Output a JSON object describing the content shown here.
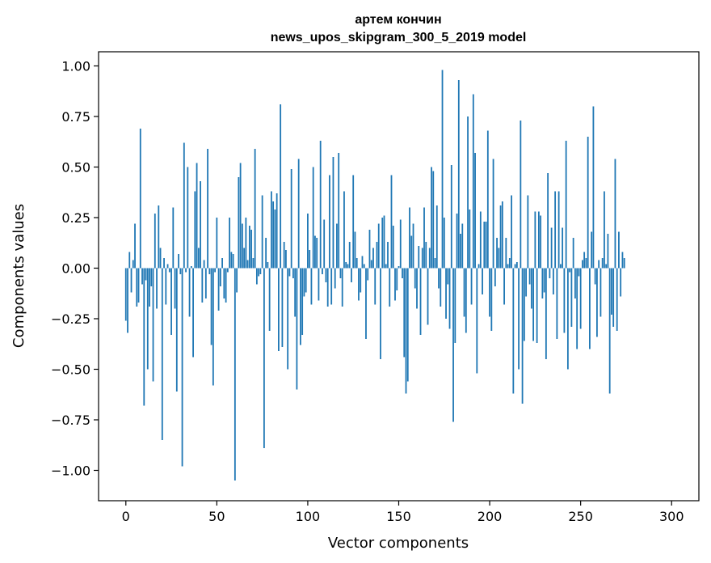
{
  "chart_data": {
    "type": "bar",
    "title": "артем кончин",
    "subtitle": "news_upos_skipgram_300_5_2019 model",
    "xlabel": "Vector components",
    "ylabel": "Components values",
    "xlim": [
      -15,
      315
    ],
    "ylim": [
      -1.15,
      1.07
    ],
    "xticks": [
      0,
      50,
      100,
      150,
      200,
      250,
      300
    ],
    "yticks": [
      -1.0,
      -0.75,
      -0.5,
      -0.25,
      0.0,
      0.25,
      0.5,
      0.75,
      1.0
    ],
    "xtick_labels": [
      "0",
      "50",
      "100",
      "150",
      "200",
      "250",
      "300"
    ],
    "ytick_labels": [
      "−1.00",
      "−0.75",
      "−0.50",
      "−0.25",
      "0.00",
      "0.25",
      "0.50",
      "0.75",
      "1.00"
    ],
    "bar_color": "#1f77b4",
    "grid": false,
    "values": [
      -0.26,
      -0.32,
      0.08,
      -0.12,
      0.04,
      0.22,
      -0.19,
      -0.17,
      0.69,
      -0.08,
      -0.68,
      -0.06,
      -0.5,
      -0.19,
      -0.09,
      -0.56,
      0.27,
      -0.2,
      0.31,
      0.1,
      -0.85,
      0.05,
      -0.18,
      0.02,
      -0.02,
      -0.33,
      0.3,
      -0.2,
      -0.61,
      0.07,
      -0.03,
      -0.98,
      0.62,
      -0.02,
      0.5,
      -0.24,
      0.01,
      -0.44,
      0.38,
      0.52,
      0.1,
      0.43,
      -0.17,
      0.04,
      -0.15,
      0.59,
      -0.03,
      -0.38,
      -0.58,
      -0.02,
      0.25,
      -0.21,
      -0.09,
      0.05,
      -0.15,
      -0.17,
      -0.02,
      0.25,
      0.08,
      0.07,
      -1.05,
      -0.12,
      0.45,
      0.52,
      0.22,
      0.1,
      0.25,
      0.04,
      0.21,
      0.19,
      0.05,
      0.59,
      -0.08,
      -0.04,
      -0.03,
      0.36,
      -0.89,
      0.15,
      0.03,
      -0.31,
      0.38,
      0.33,
      0.29,
      0.37,
      -0.41,
      0.81,
      -0.39,
      0.13,
      0.09,
      -0.5,
      -0.04,
      0.49,
      -0.05,
      -0.24,
      -0.6,
      0.54,
      -0.38,
      -0.33,
      -0.14,
      -0.12,
      0.27,
      0.09,
      -0.18,
      0.5,
      0.16,
      0.15,
      -0.16,
      0.63,
      -0.03,
      0.24,
      -0.07,
      -0.19,
      0.46,
      -0.18,
      0.55,
      -0.1,
      0.22,
      0.57,
      -0.05,
      -0.19,
      0.38,
      0.03,
      0.02,
      0.13,
      -0.07,
      0.46,
      0.18,
      0.05,
      -0.16,
      -0.12,
      0.06,
      0.02,
      -0.35,
      -0.06,
      0.19,
      0.04,
      0.1,
      -0.18,
      0.13,
      0.22,
      -0.45,
      0.25,
      0.26,
      0.02,
      0.13,
      -0.19,
      0.46,
      0.21,
      -0.16,
      -0.11,
      0.01,
      0.24,
      -0.05,
      -0.44,
      -0.62,
      -0.56,
      0.3,
      0.16,
      0.22,
      -0.1,
      -0.2,
      0.11,
      -0.33,
      0.1,
      0.3,
      0.13,
      -0.28,
      0.1,
      0.5,
      0.48,
      0.05,
      0.31,
      -0.1,
      -0.19,
      0.98,
      0.25,
      -0.25,
      -0.08,
      -0.3,
      0.51,
      -0.76,
      -0.37,
      0.27,
      0.93,
      0.17,
      0.22,
      -0.24,
      -0.32,
      0.75,
      0.29,
      -0.18,
      0.86,
      0.57,
      -0.52,
      0.02,
      0.28,
      -0.13,
      0.23,
      0.23,
      0.68,
      -0.24,
      -0.31,
      0.54,
      -0.09,
      0.15,
      0.1,
      0.31,
      0.33,
      -0.18,
      0.15,
      0.02,
      0.05,
      0.36,
      -0.62,
      0.02,
      0.03,
      -0.5,
      0.73,
      -0.67,
      -0.36,
      -0.14,
      0.36,
      -0.08,
      -0.2,
      -0.36,
      0.28,
      -0.37,
      0.28,
      0.26,
      -0.15,
      -0.12,
      -0.45,
      0.47,
      -0.05,
      0.2,
      -0.13,
      0.38,
      -0.35,
      0.38,
      0.02,
      0.2,
      -0.32,
      0.63,
      -0.5,
      -0.02,
      -0.29,
      0.15,
      -0.15,
      -0.4,
      -0.04,
      -0.3,
      0.04,
      0.08,
      0.05,
      0.65,
      -0.4,
      0.18,
      0.8,
      -0.08,
      -0.34,
      0.04,
      -0.24,
      0.05,
      0.38,
      0.02,
      0.17,
      -0.62,
      -0.23,
      -0.29,
      0.54,
      -0.31,
      0.18,
      -0.14,
      0.08,
      0.05
    ]
  }
}
